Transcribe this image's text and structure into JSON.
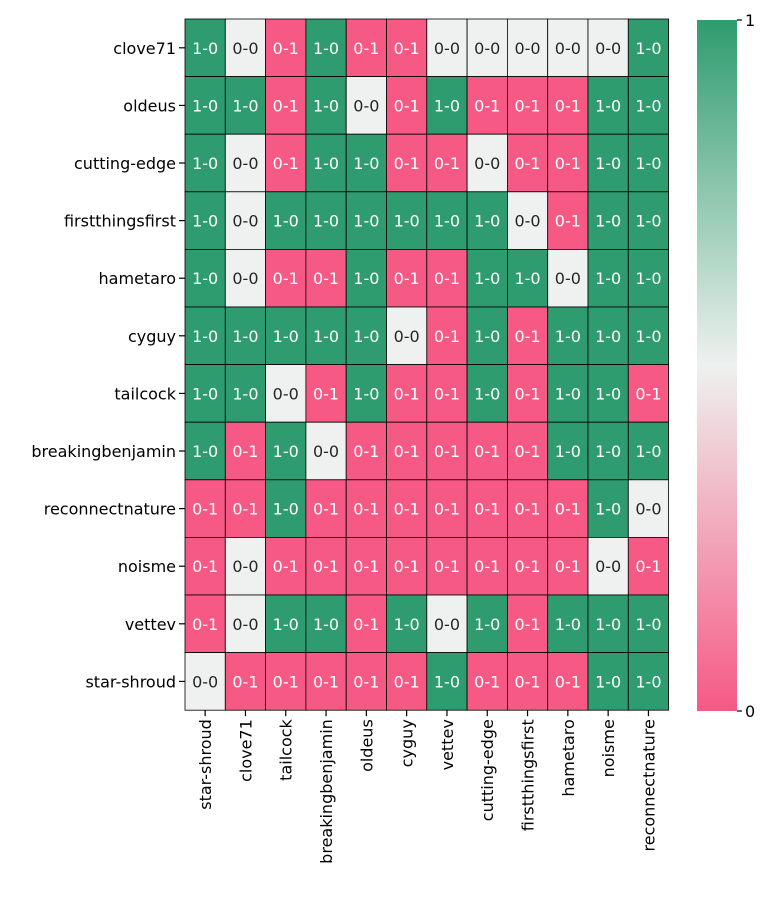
{
  "chart_data": {
    "type": "heatmap",
    "rows": [
      "clove71",
      "oldeus",
      "cutting-edge",
      "firstthingsfirst",
      "hametaro",
      "cyguy",
      "tailcock",
      "breakingbenjamin",
      "reconnectnature",
      "noisme",
      "vettev",
      "star-shroud"
    ],
    "columns": [
      "star-shroud",
      "clove71",
      "tailcock",
      "breakingbenjamin",
      "oldeus",
      "cyguy",
      "vettev",
      "cutting-edge",
      "firstthingsfirst",
      "hametaro",
      "noisme",
      "reconnectnature"
    ],
    "values": [
      [
        1,
        0.5,
        0,
        1,
        0,
        0,
        0.5,
        0.5,
        0.5,
        0.5,
        0.5,
        1
      ],
      [
        1,
        1,
        0,
        1,
        0.5,
        0,
        1,
        0,
        0,
        0,
        1,
        1
      ],
      [
        1,
        0.5,
        0,
        1,
        1,
        0,
        0,
        0.5,
        0,
        0,
        1,
        1
      ],
      [
        1,
        0.5,
        1,
        1,
        1,
        1,
        1,
        1,
        0.5,
        0,
        1,
        1
      ],
      [
        1,
        0.5,
        0,
        0,
        1,
        0,
        0,
        1,
        1,
        0.5,
        1,
        1
      ],
      [
        1,
        1,
        1,
        1,
        1,
        0.5,
        0,
        1,
        0,
        1,
        1,
        1
      ],
      [
        1,
        1,
        0.5,
        0,
        1,
        0,
        0,
        1,
        0,
        1,
        1,
        0
      ],
      [
        1,
        0,
        1,
        0.5,
        0,
        0,
        0,
        0,
        0,
        1,
        1,
        1
      ],
      [
        0,
        0,
        1,
        0,
        0,
        0,
        0,
        0,
        0,
        0,
        1,
        0.5
      ],
      [
        0,
        0.5,
        0,
        0,
        0,
        0,
        0,
        0,
        0,
        0,
        0.5,
        0
      ],
      [
        0,
        0.5,
        1,
        1,
        0,
        1,
        0.5,
        1,
        0,
        1,
        1,
        1
      ],
      [
        0.5,
        0,
        0,
        0,
        0,
        0,
        1,
        0,
        0,
        0,
        1,
        1
      ]
    ],
    "annotations": [
      [
        "1-0",
        "0-0",
        "0-1",
        "1-0",
        "0-1",
        "0-1",
        "0-0",
        "0-0",
        "0-0",
        "0-0",
        "0-0",
        "1-0"
      ],
      [
        "1-0",
        "1-0",
        "0-1",
        "1-0",
        "0-0",
        "0-1",
        "1-0",
        "0-1",
        "0-1",
        "0-1",
        "1-0",
        "1-0"
      ],
      [
        "1-0",
        "0-0",
        "0-1",
        "1-0",
        "1-0",
        "0-1",
        "0-1",
        "0-0",
        "0-1",
        "0-1",
        "1-0",
        "1-0"
      ],
      [
        "1-0",
        "0-0",
        "1-0",
        "1-0",
        "1-0",
        "1-0",
        "1-0",
        "1-0",
        "0-0",
        "0-1",
        "1-0",
        "1-0"
      ],
      [
        "1-0",
        "0-0",
        "0-1",
        "0-1",
        "1-0",
        "0-1",
        "0-1",
        "1-0",
        "1-0",
        "0-0",
        "1-0",
        "1-0"
      ],
      [
        "1-0",
        "1-0",
        "1-0",
        "1-0",
        "1-0",
        "0-0",
        "0-1",
        "1-0",
        "0-1",
        "1-0",
        "1-0",
        "1-0"
      ],
      [
        "1-0",
        "1-0",
        "0-0",
        "0-1",
        "1-0",
        "0-1",
        "0-1",
        "1-0",
        "0-1",
        "1-0",
        "1-0",
        "0-1"
      ],
      [
        "1-0",
        "0-1",
        "1-0",
        "0-0",
        "0-1",
        "0-1",
        "0-1",
        "0-1",
        "0-1",
        "1-0",
        "1-0",
        "1-0"
      ],
      [
        "0-1",
        "0-1",
        "1-0",
        "0-1",
        "0-1",
        "0-1",
        "0-1",
        "0-1",
        "0-1",
        "0-1",
        "1-0",
        "0-0"
      ],
      [
        "0-1",
        "0-0",
        "0-1",
        "0-1",
        "0-1",
        "0-1",
        "0-1",
        "0-1",
        "0-1",
        "0-1",
        "0-0",
        "0-1"
      ],
      [
        "0-1",
        "0-0",
        "1-0",
        "1-0",
        "0-1",
        "1-0",
        "0-0",
        "1-0",
        "0-1",
        "1-0",
        "1-0",
        "1-0"
      ],
      [
        "0-0",
        "0-1",
        "0-1",
        "0-1",
        "0-1",
        "0-1",
        "1-0",
        "0-1",
        "0-1",
        "0-1",
        "1-0",
        "1-0"
      ]
    ],
    "colorbar": {
      "min": 0,
      "max": 1,
      "ticks": [
        "0",
        "1"
      ]
    },
    "colors": {
      "low": "#f65984",
      "mid": "#eef1ef",
      "high": "#2e9c6e"
    },
    "grid": true,
    "title": "",
    "xlabel": "",
    "ylabel": ""
  }
}
